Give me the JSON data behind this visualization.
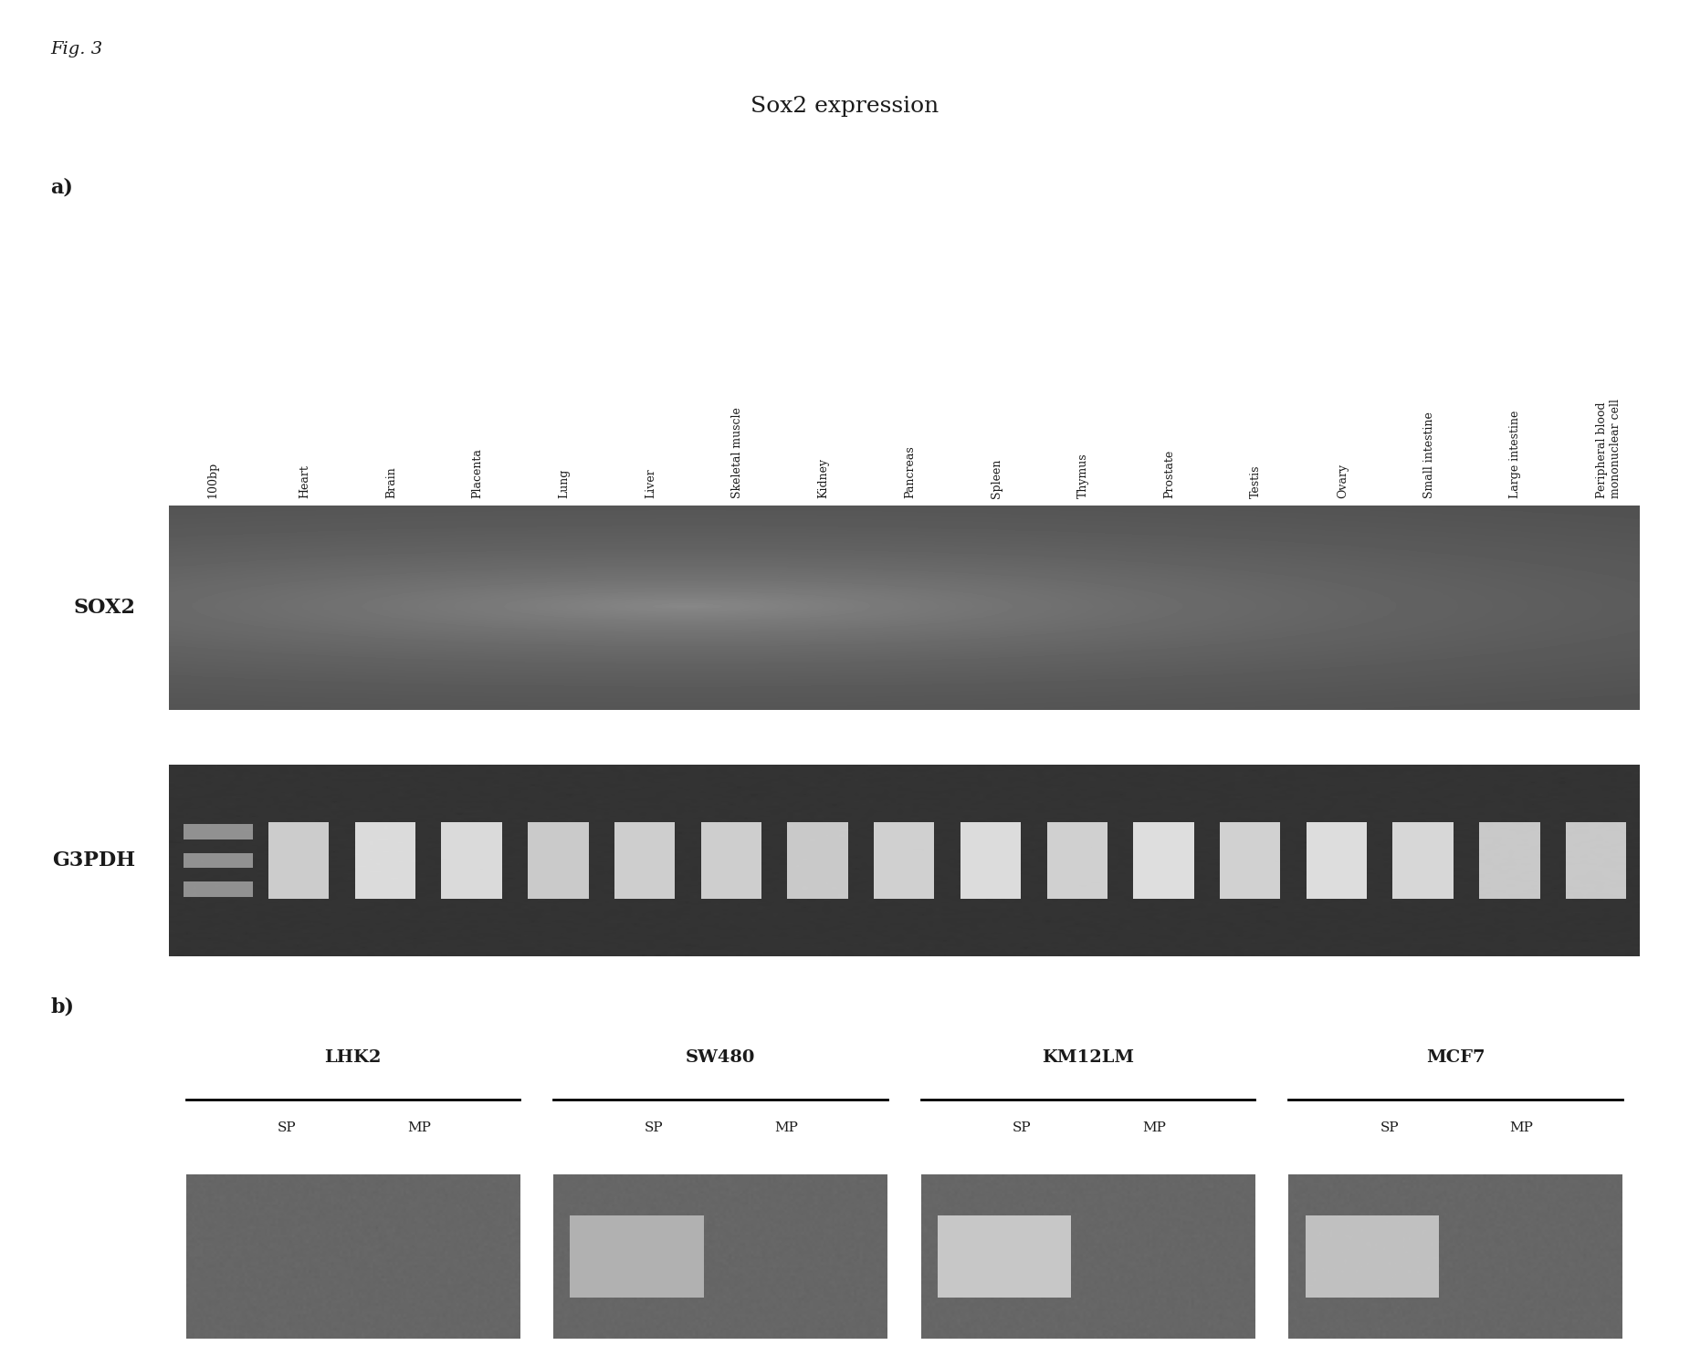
{
  "fig_label": "Fig. 3",
  "title": "Sox2 expression",
  "panel_a_label": "a)",
  "panel_b_label": "b)",
  "lane_labels_100bp": "100bp",
  "lane_labels": [
    "Heart",
    "Brain",
    "Placenta",
    "Lung",
    "Liver",
    "Skeletal muscle",
    "Kidney",
    "Pancreas",
    "Spleen",
    "Thymus",
    "Prostate",
    "Testis",
    "Ovary",
    "Small intestine",
    "Large intestine",
    "Peripheral blood\nmononuclear cell"
  ],
  "gel_a_row1_label": "SOX2",
  "gel_a_row2_label": "G3PDH",
  "panel_b_groups": [
    "LHK2",
    "SW480",
    "KM12LM",
    "MCF7"
  ],
  "panel_b_sublabels": [
    "SP",
    "MP"
  ],
  "bg_color": "#ffffff",
  "gel_bg_dark": "#4a4a4a",
  "gel_bg_medium": "#606060",
  "gel_bg_light": "#888888",
  "gel_b_bg": "#909090",
  "band_color_bright": "#e8e8e8",
  "band_color_white": "#f5f5f5",
  "marker_band_color": "#cccccc",
  "text_color": "#1a1a1a",
  "line_color": "#000000"
}
